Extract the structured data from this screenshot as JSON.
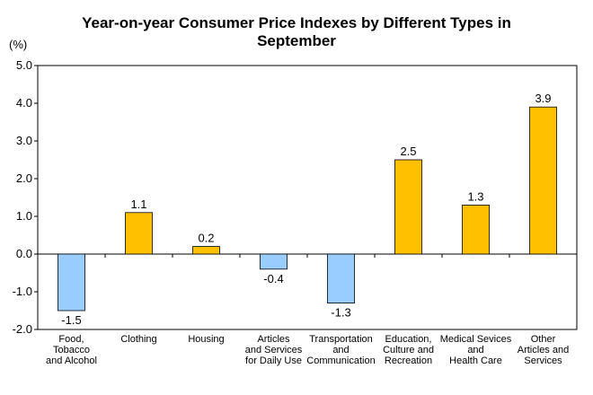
{
  "chart_data": {
    "type": "bar",
    "title_lines": [
      "Year-on-year Consumer Price Indexes by Different Types in",
      "September"
    ],
    "ylabel": "(%)",
    "ylim": [
      -2.0,
      5.0
    ],
    "yticks": [
      "5.0",
      "4.0",
      "3.0",
      "2.0",
      "1.0",
      "0.0",
      "-1.0",
      "-2.0"
    ],
    "categories": [
      [
        "Food,",
        "Tobacco",
        "and Alcohol"
      ],
      [
        "Clothing"
      ],
      [
        "Housing"
      ],
      [
        "Articles",
        "and Services",
        "for Daily Use"
      ],
      [
        "Transportation",
        "and",
        "Communication"
      ],
      [
        "Education,",
        "Culture and",
        "Recreation"
      ],
      [
        "Medical Sevices",
        "and",
        "Health Care"
      ],
      [
        "Other",
        "Articles and",
        "Services"
      ]
    ],
    "values": [
      -1.5,
      1.1,
      0.2,
      -0.4,
      -1.3,
      2.5,
      1.3,
      3.9
    ],
    "value_labels": [
      "-1.5",
      "1.1",
      "0.2",
      "-0.4",
      "-1.3",
      "2.5",
      "1.3",
      "3.9"
    ],
    "colors": {
      "positive": "#FFC000",
      "negative": "#99CCFF",
      "stroke": "#000000"
    },
    "grid": false,
    "legend": "none"
  }
}
